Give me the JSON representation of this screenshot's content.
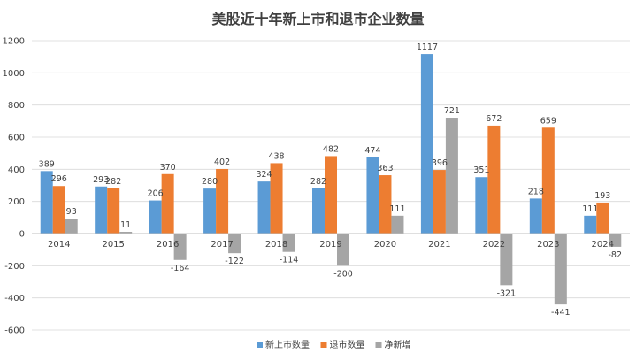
{
  "chart_data": {
    "type": "bar",
    "title": "美股近十年新上市和退市企业数量",
    "categories": [
      "2014",
      "2015",
      "2016",
      "2017",
      "2018",
      "2019",
      "2020",
      "2021",
      "2022",
      "2023",
      "2024"
    ],
    "series": [
      {
        "name": "新上市数量",
        "color": "#5B9BD5",
        "values": [
          389,
          293,
          206,
          280,
          324,
          282,
          474,
          1117,
          351,
          218,
          111
        ]
      },
      {
        "name": "退市数量",
        "color": "#ED7D31",
        "values": [
          296,
          282,
          370,
          402,
          438,
          482,
          363,
          396,
          672,
          659,
          193
        ]
      },
      {
        "name": "净新增",
        "color": "#A5A5A5",
        "values": [
          93,
          11,
          -164,
          -122,
          -114,
          -200,
          111,
          721,
          -321,
          -441,
          -82
        ]
      }
    ],
    "ylim": [
      -600,
      1200
    ],
    "yticks": [
      -600,
      -400,
      -200,
      0,
      200,
      400,
      600,
      800,
      1000,
      1200
    ],
    "legend": "bottom",
    "grid": true
  }
}
